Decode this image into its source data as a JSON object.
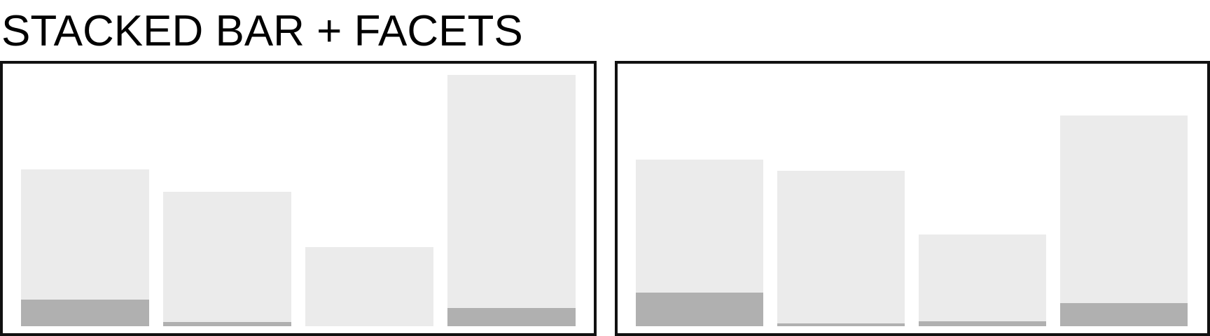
{
  "title": "STACKED BAR + FACETS",
  "colors": {
    "segment_base": "#b0b0b0",
    "segment_top": "#ebebeb",
    "frame": "#111111"
  },
  "chart_data": [
    {
      "type": "bar",
      "stacked": true,
      "facet": 1,
      "categories": [
        "",
        "",
        "",
        ""
      ],
      "series": [
        {
          "values": [
            38,
            6,
            0,
            26
          ]
        },
        {
          "values": [
            186,
            186,
            113,
            333
          ]
        }
      ],
      "ylim": [
        0,
        364
      ],
      "grid": false,
      "legend": "none"
    },
    {
      "type": "bar",
      "stacked": true,
      "facet": 2,
      "categories": [
        "",
        "",
        "",
        ""
      ],
      "series": [
        {
          "values": [
            48,
            4,
            7,
            33
          ]
        },
        {
          "values": [
            190,
            218,
            124,
            268
          ]
        }
      ],
      "ylim": [
        0,
        364
      ],
      "grid": false,
      "legend": "none"
    }
  ]
}
